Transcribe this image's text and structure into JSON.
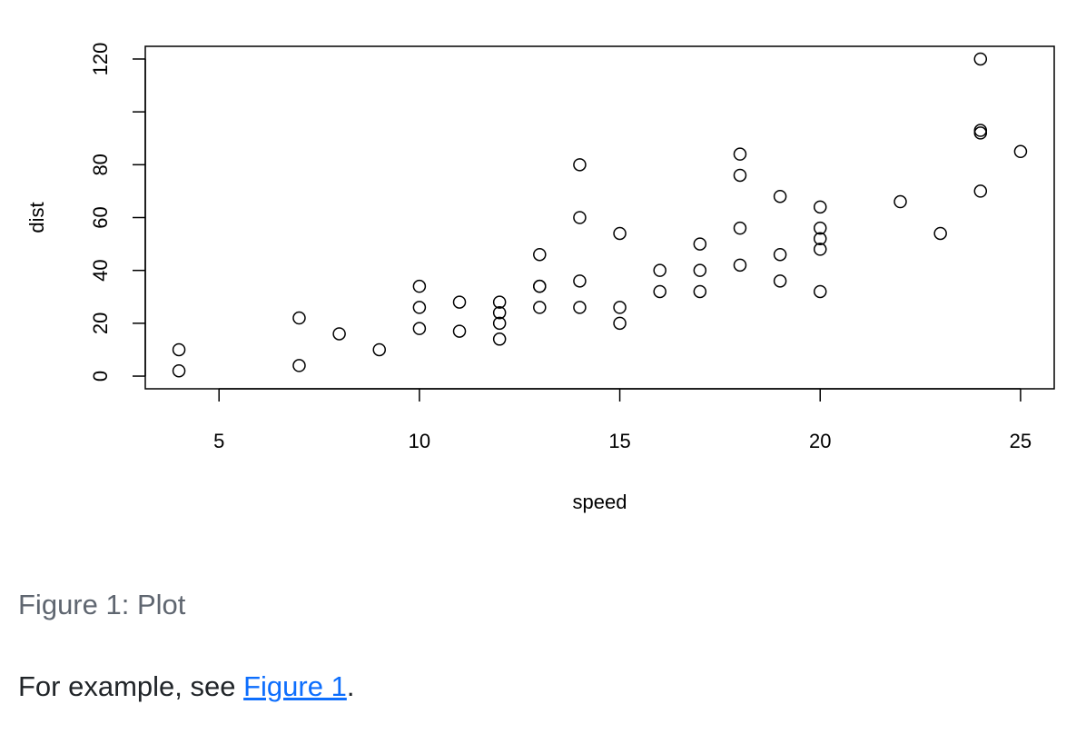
{
  "chart_data": {
    "type": "scatter",
    "title": "",
    "xlabel": "speed",
    "ylabel": "dist",
    "xlim": [
      4,
      25
    ],
    "ylim": [
      0,
      120
    ],
    "xticks": [
      5,
      10,
      15,
      20,
      25
    ],
    "xtick_labels": [
      "5",
      "10",
      "15",
      "20",
      "25"
    ],
    "yticks": [
      0,
      20,
      40,
      60,
      80,
      100,
      120
    ],
    "ytick_labels": [
      "0",
      "20",
      "40",
      "60",
      "80",
      "",
      "120"
    ],
    "grid": false,
    "marker": "open-circle",
    "color": "#000000",
    "x": [
      4,
      4,
      7,
      7,
      8,
      9,
      10,
      10,
      10,
      11,
      11,
      12,
      12,
      12,
      12,
      13,
      13,
      13,
      13,
      14,
      14,
      14,
      14,
      15,
      15,
      15,
      16,
      16,
      17,
      17,
      17,
      18,
      18,
      18,
      18,
      19,
      19,
      19,
      20,
      20,
      20,
      20,
      20,
      22,
      23,
      24,
      24,
      24,
      24,
      25
    ],
    "y": [
      2,
      10,
      4,
      22,
      16,
      10,
      18,
      26,
      34,
      17,
      28,
      14,
      20,
      24,
      28,
      26,
      34,
      34,
      46,
      26,
      36,
      60,
      80,
      20,
      26,
      54,
      32,
      40,
      32,
      40,
      50,
      42,
      56,
      76,
      84,
      36,
      46,
      68,
      32,
      48,
      52,
      56,
      64,
      66,
      54,
      70,
      92,
      93,
      120,
      85
    ]
  },
  "figure": {
    "caption": "Figure 1: Plot"
  },
  "paragraph": {
    "prefix": "For example, see ",
    "link_text": "Figure 1",
    "suffix": ".",
    "link_color": "#0d6efd"
  }
}
